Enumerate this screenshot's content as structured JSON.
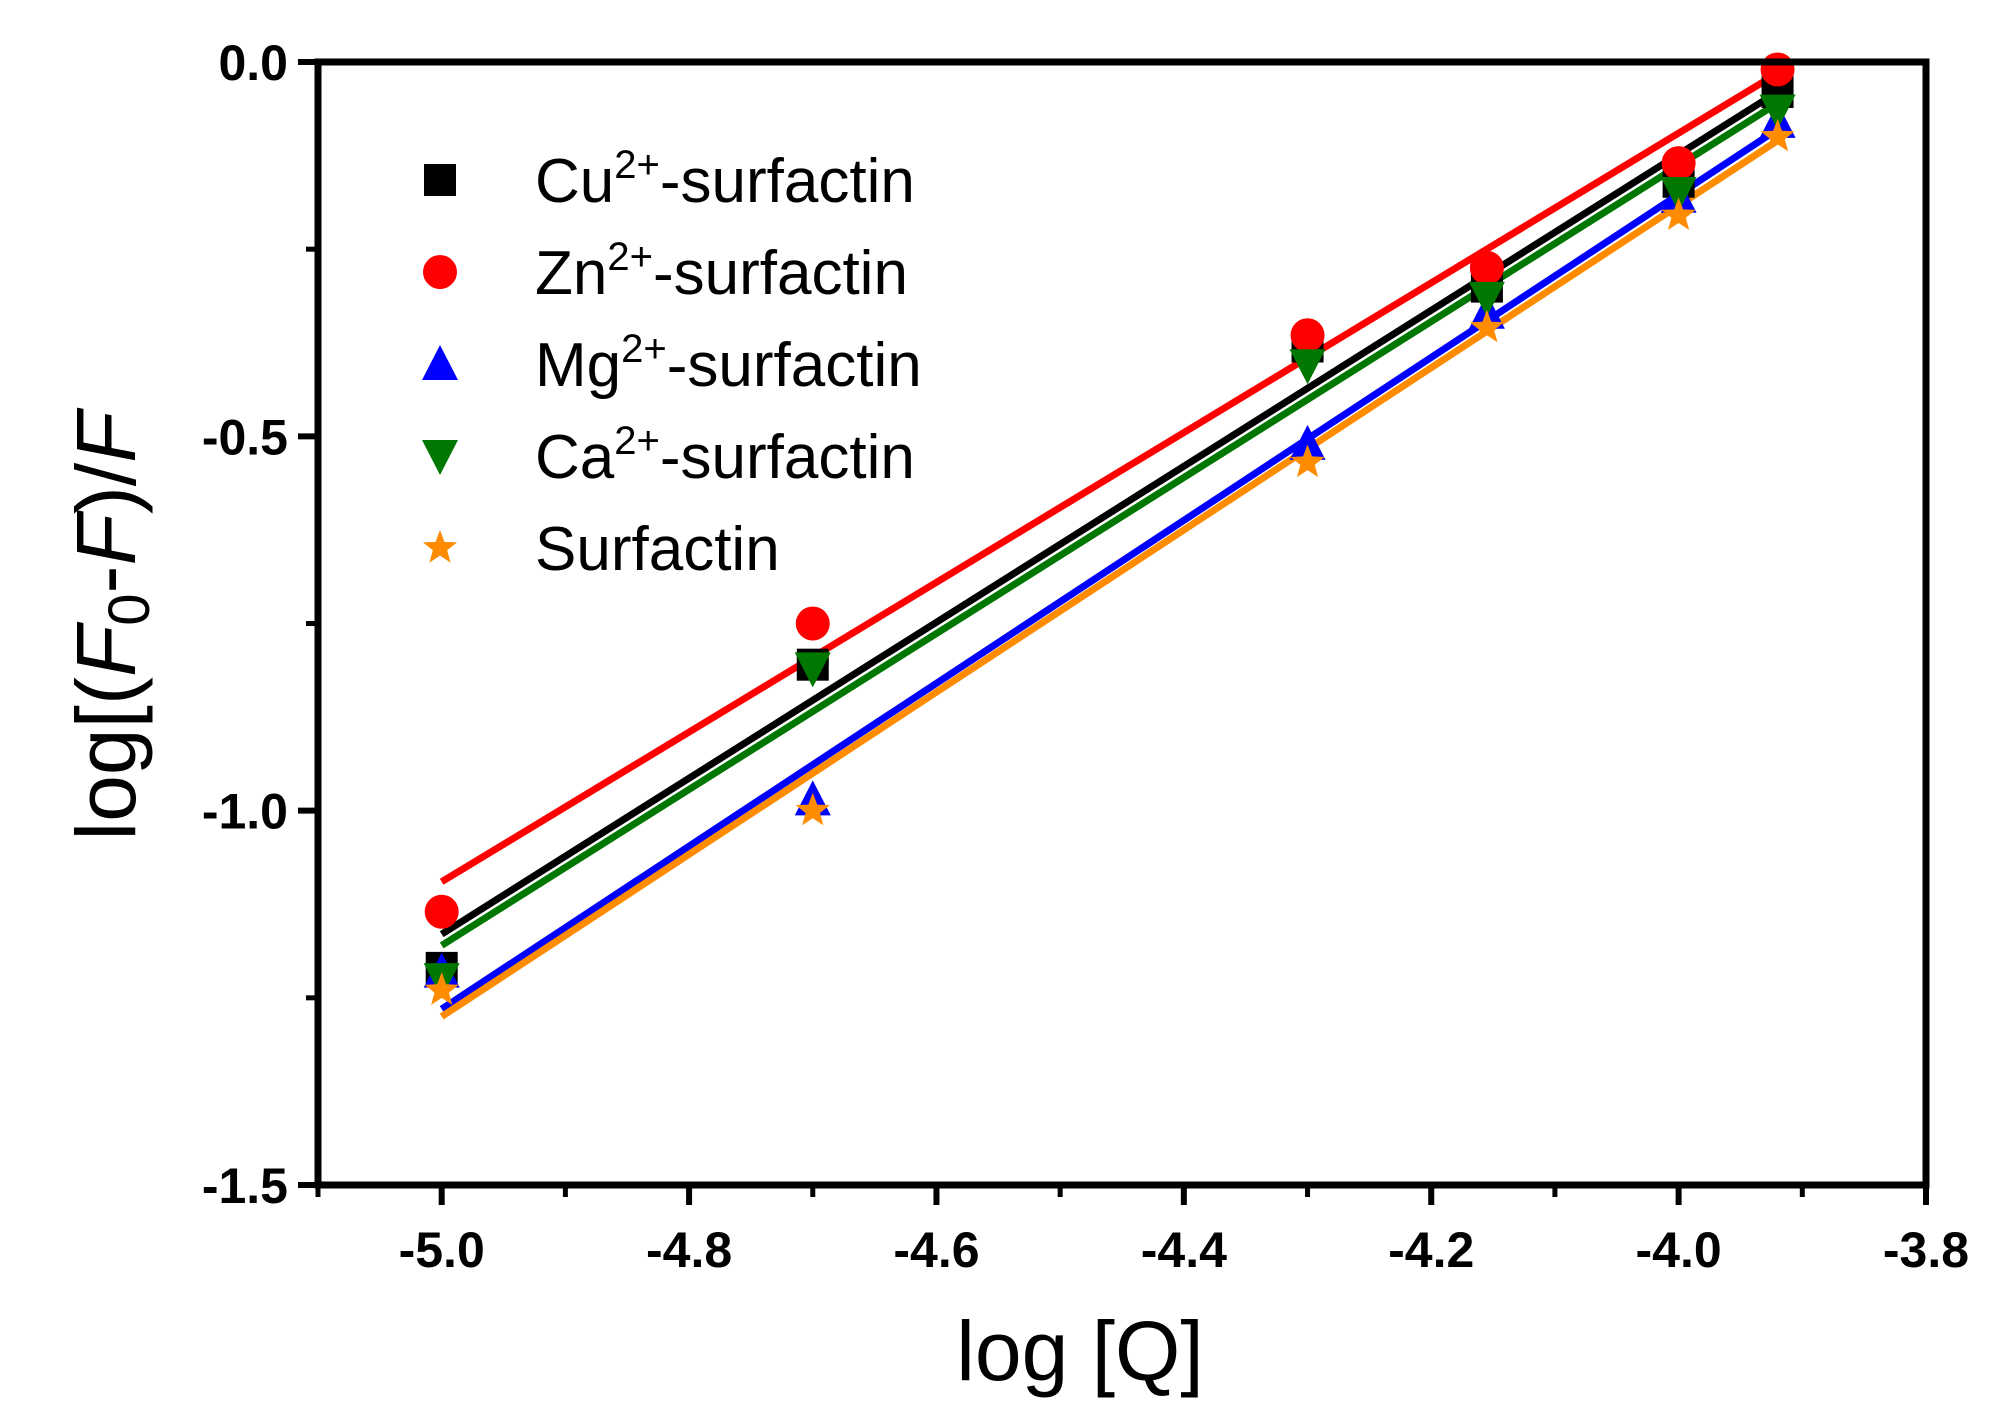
{
  "chart_data": {
    "type": "scatter",
    "title": "",
    "xlabel": "log [Q]",
    "ylabel": "log[(F0-F)/F]",
    "ylabel_parts": {
      "pre": "log[(",
      "f0": "F",
      "sub0": "0",
      "dash": "-",
      "f": "F",
      "post": ")/",
      "f2": "F"
    },
    "xlim": [
      -5.1,
      -3.8
    ],
    "ylim": [
      -1.5,
      0.0
    ],
    "x_ticks": [
      -5.0,
      -4.8,
      -4.6,
      -4.4,
      -4.2,
      -4.0,
      -3.8
    ],
    "x_tick_labels": [
      "-5.0",
      "-4.8",
      "-4.6",
      "-4.4",
      "-4.2",
      "-4.0",
      "-3.8"
    ],
    "y_ticks": [
      0.0,
      -0.5,
      -1.0,
      -1.5
    ],
    "y_tick_labels": [
      "0.0",
      "-0.5",
      "-1.0",
      "-1.5"
    ],
    "legend_position": "top-left",
    "x": [
      -5.0,
      -4.7,
      -4.3,
      -4.155,
      -4.0,
      -3.92
    ],
    "series": [
      {
        "name": "Cu2+-surfactin",
        "label_base": "Cu",
        "label_sup": "2+",
        "label_rest": "-surfactin",
        "marker": "square",
        "color": "#000000",
        "values": [
          -1.21,
          -0.805,
          -0.38,
          -0.3,
          -0.16,
          -0.04
        ],
        "fit": [
          [
            -5.0,
            -1.165
          ],
          [
            -3.92,
            -0.04
          ]
        ]
      },
      {
        "name": "Zn2+-surfactin",
        "label_base": "Zn",
        "label_sup": "2+",
        "label_rest": "-surfactin",
        "marker": "circle",
        "color": "#ff0000",
        "values": [
          -1.135,
          -0.75,
          -0.365,
          -0.275,
          -0.135,
          -0.01
        ],
        "fit": [
          [
            -5.0,
            -1.095
          ],
          [
            -3.92,
            -0.015
          ]
        ]
      },
      {
        "name": "Mg2+-surfactin",
        "label_base": "Mg",
        "label_sup": "2+",
        "label_rest": "-surfactin",
        "marker": "triangle-up",
        "color": "#0000ff",
        "values": [
          -1.215,
          -0.985,
          -0.51,
          -0.335,
          -0.18,
          -0.08
        ],
        "fit": [
          [
            -5.0,
            -1.265
          ],
          [
            -3.92,
            -0.09
          ]
        ]
      },
      {
        "name": "Ca2+-surfactin",
        "label_base": "Ca",
        "label_sup": "2+",
        "label_rest": "-surfactin",
        "marker": "triangle-down",
        "color": "#007700",
        "values": [
          -1.225,
          -0.81,
          -0.405,
          -0.315,
          -0.175,
          -0.065
        ],
        "fit": [
          [
            -5.0,
            -1.18
          ],
          [
            -3.92,
            -0.055
          ]
        ]
      },
      {
        "name": "Surfactin",
        "label_base": "Surfactin",
        "label_sup": "",
        "label_rest": "",
        "marker": "star",
        "color": "#ff8c00",
        "values": [
          -1.24,
          -1.0,
          -0.535,
          -0.355,
          -0.205,
          -0.1
        ],
        "fit": [
          [
            -5.0,
            -1.275
          ],
          [
            -3.92,
            -0.105
          ]
        ]
      }
    ]
  }
}
